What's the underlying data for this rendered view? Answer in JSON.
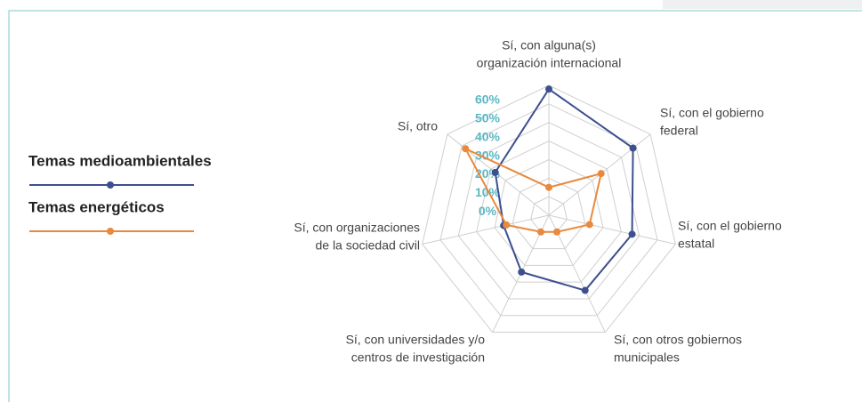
{
  "chart_data": {
    "type": "radar",
    "categories": [
      [
        "Sí, con alguna(s)",
        "organización internacional"
      ],
      [
        "Sí, con el gobierno",
        "federal"
      ],
      [
        "Sí, con el gobierno",
        "estatal"
      ],
      [
        "Sí, con otros gobiernos",
        "municipales"
      ],
      [
        "Sí, con  universidades y/o",
        "centros de investigación"
      ],
      [
        "Sí, con organizaciones",
        "de la sociedad civil"
      ],
      [
        "Sí, otro"
      ]
    ],
    "series": [
      {
        "name": "Temas medioambientales",
        "color": "#3d4f8f",
        "values": [
          58,
          48,
          36,
          35,
          24,
          15,
          27
        ]
      },
      {
        "name": "Temas energéticos",
        "color": "#e8893c",
        "values": [
          5,
          26,
          12.5,
          0,
          0,
          13.5,
          47.5
        ]
      }
    ],
    "ylim": [
      -10,
      60
    ],
    "yticks": [
      {
        "value": 0,
        "label": "0%"
      },
      {
        "value": 10,
        "label": "10%"
      },
      {
        "value": 20,
        "label": "20%"
      },
      {
        "value": 30,
        "label": "30%"
      },
      {
        "value": 40,
        "label": "40%"
      },
      {
        "value": 50,
        "label": "50%"
      },
      {
        "value": 60,
        "label": "60%"
      }
    ],
    "grid": true
  }
}
